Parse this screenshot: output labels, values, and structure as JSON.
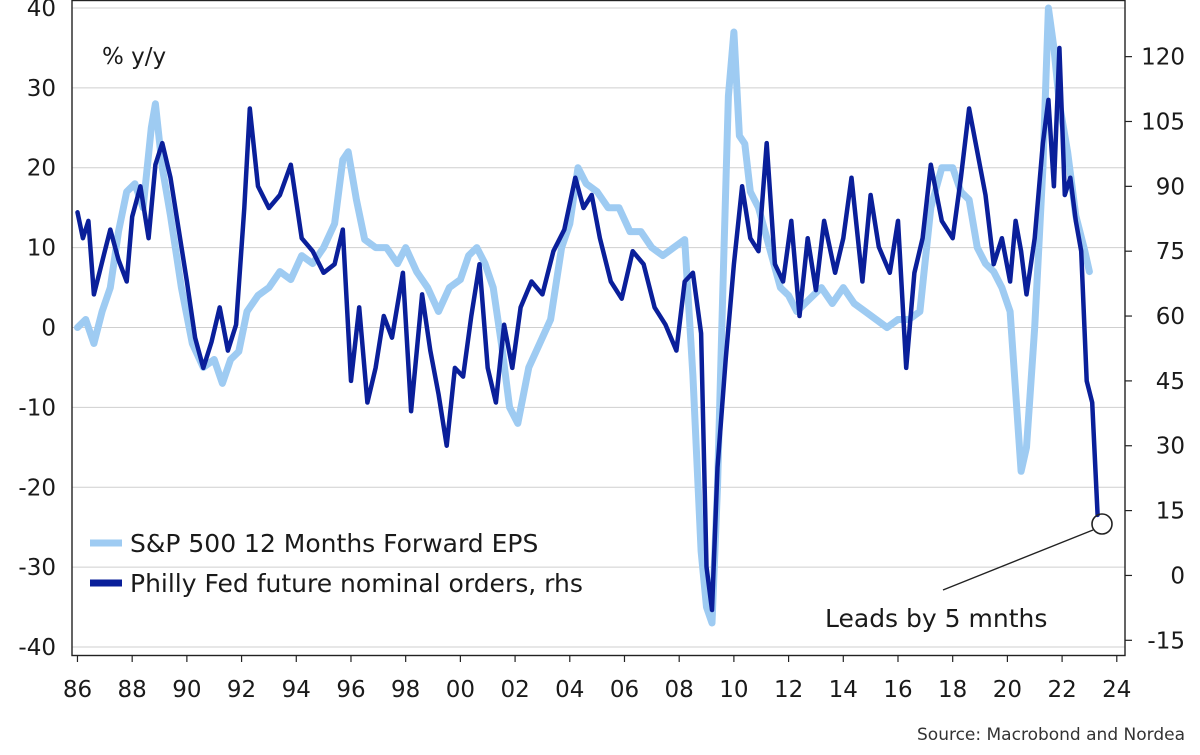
{
  "chart_data": {
    "type": "line",
    "y_unit_label": "% y/y",
    "source": "Source: Macrobond and Nordea",
    "annotation": "Leads by 5 mnths",
    "colors": {
      "eps": "#9ecbf2",
      "philly": "#0a1f9a"
    },
    "x_range": [
      1985.8,
      2024.3
    ],
    "x_ticks": [
      "86",
      "88",
      "90",
      "92",
      "94",
      "96",
      "98",
      "00",
      "02",
      "04",
      "06",
      "08",
      "10",
      "12",
      "14",
      "16",
      "18",
      "20",
      "22",
      "24"
    ],
    "x_tick_years": [
      1986,
      1988,
      1990,
      1992,
      1994,
      1996,
      1998,
      2000,
      2002,
      2004,
      2006,
      2008,
      2010,
      2012,
      2014,
      2016,
      2018,
      2020,
      2022,
      2024
    ],
    "y_left": {
      "range": [
        -41,
        41
      ],
      "ticks": [
        40,
        30,
        20,
        10,
        0,
        -10,
        -20,
        -30,
        -40
      ]
    },
    "y_right": {
      "range": [
        -18.4,
        133.1
      ],
      "ticks": [
        120,
        105,
        90,
        75,
        60,
        45,
        30,
        15,
        0,
        -15
      ]
    },
    "series": [
      {
        "name": "S&P 500 12 Months Forward EPS",
        "axis": "left",
        "x": [
          1986.0,
          1986.3,
          1986.6,
          1986.9,
          1987.2,
          1987.5,
          1987.8,
          1988.1,
          1988.4,
          1988.7,
          1988.85,
          1989.1,
          1989.4,
          1989.8,
          1990.2,
          1990.6,
          1991.0,
          1991.3,
          1991.6,
          1991.9,
          1992.2,
          1992.6,
          1993.0,
          1993.4,
          1993.8,
          1994.2,
          1994.6,
          1995.0,
          1995.4,
          1995.7,
          1995.9,
          1996.2,
          1996.5,
          1996.9,
          1997.3,
          1997.7,
          1998.0,
          1998.4,
          1998.8,
          1999.2,
          1999.6,
          2000.0,
          2000.3,
          2000.6,
          2000.9,
          2001.2,
          2001.5,
          2001.8,
          2002.1,
          2002.5,
          2002.9,
          2003.3,
          2003.7,
          2004.0,
          2004.3,
          2004.6,
          2005.0,
          2005.4,
          2005.8,
          2006.2,
          2006.6,
          2007.0,
          2007.4,
          2007.8,
          2008.2,
          2008.5,
          2008.8,
          2009.0,
          2009.2,
          2009.4,
          2009.6,
          2009.8,
          2010.0,
          2010.2,
          2010.4,
          2010.6,
          2010.9,
          2011.3,
          2011.7,
          2012.0,
          2012.3,
          2012.6,
          2012.9,
          2013.2,
          2013.6,
          2014.0,
          2014.4,
          2014.8,
          2015.2,
          2015.6,
          2016.0,
          2016.4,
          2016.8,
          2017.2,
          2017.6,
          2018.0,
          2018.3,
          2018.6,
          2018.9,
          2019.2,
          2019.5,
          2019.8,
          2020.1,
          2020.3,
          2020.5,
          2020.7,
          2021.0,
          2021.3,
          2021.5,
          2021.7,
          2021.9,
          2022.2,
          2022.5,
          2022.8,
          2023.0
        ],
        "values": [
          0,
          1,
          -2,
          2,
          5,
          12,
          17,
          18,
          15,
          25,
          28,
          20,
          14,
          5,
          -2,
          -5,
          -4,
          -7,
          -4,
          -3,
          2,
          4,
          5,
          7,
          6,
          9,
          8,
          10,
          13,
          21,
          22,
          16,
          11,
          10,
          10,
          8,
          10,
          7,
          5,
          2,
          5,
          6,
          9,
          10,
          8,
          5,
          -2,
          -10,
          -12,
          -5,
          -2,
          1,
          10,
          13,
          20,
          18,
          17,
          15,
          15,
          12,
          12,
          10,
          9,
          10,
          11,
          -6,
          -28,
          -35,
          -37,
          -20,
          5,
          29,
          37,
          24,
          23,
          17,
          15,
          10,
          5,
          4,
          2,
          3,
          4,
          5,
          3,
          5,
          3,
          2,
          1,
          0,
          1,
          1,
          2,
          15,
          20,
          20,
          17,
          16,
          10,
          8,
          7,
          5,
          2,
          -8,
          -18,
          -15,
          0,
          20,
          40,
          35,
          28,
          22,
          14,
          10,
          7
        ]
      },
      {
        "name": "Philly Fed future nominal orders, rhs",
        "axis": "right",
        "x": [
          1986.0,
          1986.2,
          1986.4,
          1986.6,
          1986.8,
          1987.0,
          1987.2,
          1987.5,
          1987.8,
          1988.0,
          1988.3,
          1988.6,
          1988.85,
          1989.1,
          1989.4,
          1989.7,
          1990.0,
          1990.3,
          1990.6,
          1990.9,
          1991.2,
          1991.5,
          1991.8,
          1992.1,
          1992.3,
          1992.6,
          1993.0,
          1993.4,
          1993.8,
          1994.2,
          1994.6,
          1995.0,
          1995.4,
          1995.7,
          1996.0,
          1996.3,
          1996.6,
          1996.9,
          1997.2,
          1997.5,
          1997.9,
          1998.2,
          1998.6,
          1998.9,
          1999.2,
          1999.5,
          1999.8,
          2000.1,
          2000.4,
          2000.7,
          2001.0,
          2001.3,
          2001.6,
          2001.9,
          2002.2,
          2002.6,
          2003.0,
          2003.4,
          2003.8,
          2004.2,
          2004.5,
          2004.8,
          2005.1,
          2005.5,
          2005.9,
          2006.3,
          2006.7,
          2007.1,
          2007.5,
          2007.9,
          2008.2,
          2008.5,
          2008.8,
          2009.0,
          2009.2,
          2009.4,
          2009.7,
          2010.0,
          2010.3,
          2010.6,
          2010.9,
          2011.2,
          2011.5,
          2011.8,
          2012.1,
          2012.4,
          2012.7,
          2013.0,
          2013.3,
          2013.7,
          2014.0,
          2014.3,
          2014.7,
          2015.0,
          2015.3,
          2015.7,
          2016.0,
          2016.3,
          2016.6,
          2016.9,
          2017.2,
          2017.6,
          2018.0,
          2018.3,
          2018.6,
          2018.9,
          2019.2,
          2019.5,
          2019.8,
          2020.1,
          2020.3,
          2020.5,
          2020.7,
          2021.0,
          2021.3,
          2021.5,
          2021.7,
          2021.9,
          2022.1,
          2022.3,
          2022.5,
          2022.7,
          2022.9,
          2023.1,
          2023.3
        ],
        "values": [
          84,
          78,
          82,
          65,
          70,
          75,
          80,
          73,
          68,
          83,
          90,
          78,
          95,
          100,
          92,
          80,
          68,
          55,
          48,
          54,
          62,
          52,
          58,
          85,
          108,
          90,
          85,
          88,
          95,
          78,
          75,
          70,
          72,
          80,
          45,
          62,
          40,
          48,
          60,
          55,
          70,
          38,
          65,
          52,
          42,
          30,
          48,
          46,
          60,
          72,
          48,
          40,
          58,
          48,
          62,
          68,
          65,
          75,
          80,
          92,
          85,
          88,
          78,
          68,
          64,
          75,
          72,
          62,
          58,
          52,
          68,
          70,
          56,
          2,
          -8,
          25,
          50,
          72,
          90,
          78,
          75,
          100,
          72,
          68,
          82,
          60,
          78,
          66,
          82,
          70,
          78,
          92,
          68,
          88,
          76,
          70,
          82,
          48,
          70,
          78,
          95,
          82,
          78,
          92,
          108,
          98,
          88,
          72,
          78,
          68,
          82,
          75,
          65,
          78,
          100,
          110,
          90,
          122,
          88,
          92,
          82,
          75,
          45,
          40,
          14
        ]
      }
    ]
  }
}
